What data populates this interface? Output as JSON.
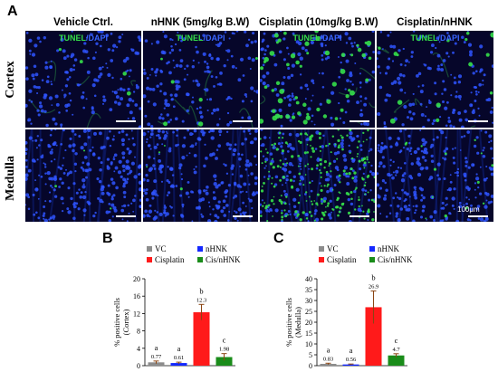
{
  "figure": {
    "panel_a_letter": "A",
    "panel_b_letter": "B",
    "panel_c_letter": "C",
    "column_headers": [
      "Vehicle Ctrl.",
      "nHNK (5mg/kg B.W)",
      "Cisplatin (10mg/kg B.W)",
      "Cisplatin/nHNK"
    ],
    "row_labels": [
      "Cortex",
      "Medulla"
    ],
    "stain_label_green": "TUNEL",
    "stain_label_sep": "/",
    "stain_label_blue": "DAPI",
    "scale_bar_label": "100μm"
  },
  "colors": {
    "VC": "#8c8c8c",
    "nHNK": "#1428ff",
    "Cisplatin": "#ff1a1a",
    "Cis/nHNK": "#1a8c1a",
    "error_bar": "#8b4513",
    "tissue_background": "#06062a",
    "nuclei_blue": "#2f55ff",
    "tunel_green": "#35e04a"
  },
  "chart_data": [
    {
      "type": "bar",
      "panel": "B",
      "categories": [
        "VC",
        "nHNK",
        "Cisplatin",
        "Cis/nHNK"
      ],
      "values": [
        0.77,
        0.61,
        12.3,
        1.98
      ],
      "errors": [
        0.3,
        0.2,
        1.8,
        0.8
      ],
      "value_labels": [
        "0.77",
        "0.61",
        "12.3",
        "1.98"
      ],
      "significance_letters": [
        "a",
        "a",
        "b",
        "c"
      ],
      "ylabel_lines": [
        "% positive cells",
        "(Cortex)"
      ],
      "ylim": [
        0,
        20
      ],
      "yticks": [
        "0",
        "4",
        "8",
        "12",
        "16",
        "20"
      ],
      "legend": [
        "VC",
        "nHNK",
        "Cisplatin",
        "Cis/nHNK"
      ],
      "legend_placement": "top",
      "grid": false
    },
    {
      "type": "bar",
      "panel": "C",
      "categories": [
        "VC",
        "nHNK",
        "Cisplatin",
        "Cis/nHNK"
      ],
      "values": [
        0.83,
        0.56,
        26.9,
        4.7
      ],
      "errors": [
        0.3,
        0.2,
        7.5,
        0.8
      ],
      "value_labels": [
        "0.83",
        "0.56",
        "26.9",
        "4.7"
      ],
      "significance_letters": [
        "a",
        "a",
        "b",
        "c"
      ],
      "ylabel_lines": [
        "% positive cells",
        "(Medulla)"
      ],
      "ylim": [
        0,
        40
      ],
      "yticks": [
        "0",
        "5",
        "10",
        "15",
        "20",
        "25",
        "30",
        "35",
        "40"
      ],
      "legend": [
        "VC",
        "nHNK",
        "Cisplatin",
        "Cis/nHNK"
      ],
      "legend_placement": "top",
      "grid": false
    }
  ]
}
